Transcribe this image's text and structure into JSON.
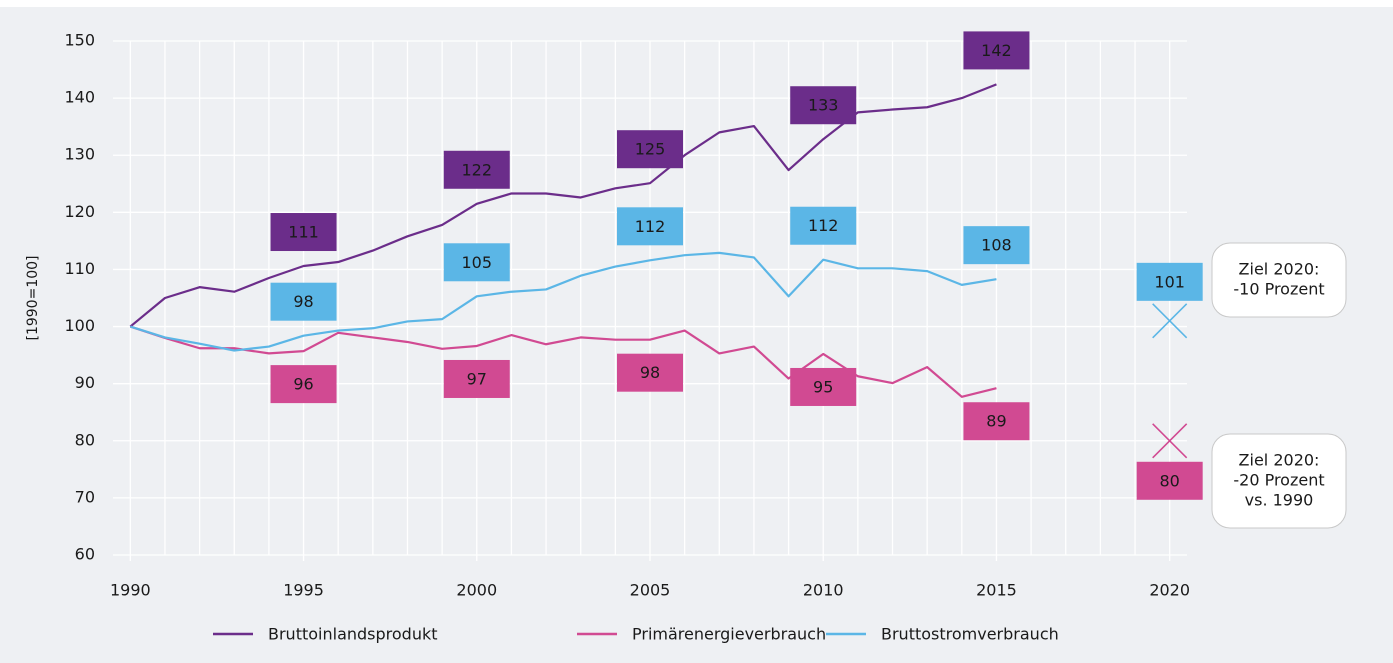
{
  "chart_data": {
    "type": "line",
    "ylabel": "[1990=100]",
    "x": [
      1990,
      1991,
      1992,
      1993,
      1994,
      1995,
      1996,
      1997,
      1998,
      1999,
      2000,
      2001,
      2002,
      2003,
      2004,
      2005,
      2006,
      2007,
      2008,
      2009,
      2010,
      2011,
      2012,
      2013,
      2014,
      2015
    ],
    "series": [
      {
        "name": "Bruttoinlandsprodukt",
        "color": "#6b2d8a",
        "label_text_color": "#ffffff",
        "values": [
          100,
          105,
          106.9,
          106.1,
          108.5,
          110.6,
          111.3,
          113.3,
          115.8,
          117.8,
          121.5,
          123.3,
          123.3,
          122.6,
          124.2,
          125.1,
          130,
          134,
          135.1,
          127.4,
          132.8,
          137.5,
          138,
          138.4,
          140,
          142.4
        ],
        "value_labels": [
          null,
          null,
          null,
          null,
          null,
          "111",
          null,
          null,
          null,
          null,
          "122",
          null,
          null,
          null,
          null,
          "125",
          null,
          null,
          null,
          null,
          "133",
          null,
          null,
          null,
          null,
          "142"
        ]
      },
      {
        "name": "Primärenergieverbrauch",
        "color": "#d14a92",
        "label_text_color": "#1a1a1a",
        "values": [
          100,
          98,
          96.2,
          96.2,
          95.3,
          95.7,
          98.9,
          98.1,
          97.3,
          96.1,
          96.6,
          98.5,
          96.9,
          98.1,
          97.7,
          97.7,
          99.3,
          95.3,
          96.5,
          90.9,
          95.2,
          91.3,
          90.1,
          92.9,
          87.7,
          89.2
        ],
        "value_labels": [
          null,
          null,
          null,
          null,
          null,
          "96",
          null,
          null,
          null,
          null,
          "97",
          null,
          null,
          null,
          null,
          "98",
          null,
          null,
          null,
          null,
          "95",
          null,
          null,
          null,
          null,
          "89"
        ]
      },
      {
        "name": "Bruttostromverbrauch",
        "color": "#5bb6e6",
        "label_text_color": "#1a1a1a",
        "values": [
          100,
          98.1,
          97,
          95.8,
          96.5,
          98.4,
          99.3,
          99.7,
          100.9,
          101.3,
          105.3,
          106.1,
          106.5,
          108.9,
          110.5,
          111.6,
          112.5,
          112.9,
          112.1,
          105.3,
          111.7,
          110.2,
          110.2,
          109.7,
          107.3,
          108.3
        ],
        "value_labels": [
          null,
          null,
          null,
          null,
          null,
          "98",
          null,
          null,
          null,
          null,
          "105",
          null,
          null,
          null,
          null,
          "112",
          null,
          null,
          null,
          null,
          "112",
          null,
          null,
          null,
          null,
          "108"
        ]
      }
    ],
    "targets": [
      {
        "series": 2,
        "x": 2020,
        "value": 101,
        "note": [
          "Ziel 2020:",
          "-10 Prozent"
        ]
      },
      {
        "series": 1,
        "x": 2020,
        "value": 80,
        "note": [
          "Ziel 2020:",
          "-20 Prozent",
          "vs. 1990"
        ]
      }
    ],
    "xlim": [
      1989.5,
      2020.5
    ],
    "xticks": [
      1990,
      1995,
      2000,
      2005,
      2010,
      2015,
      2020
    ],
    "x_grid_step": 1,
    "ylim": [
      60,
      150
    ],
    "yticks": [
      60,
      70,
      80,
      90,
      100,
      110,
      120,
      130,
      140,
      150
    ],
    "grid": true,
    "legend": "bottom"
  }
}
